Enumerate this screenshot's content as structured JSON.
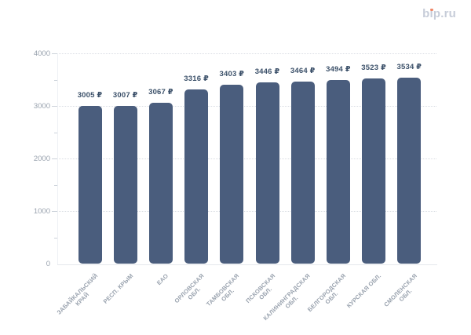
{
  "header": {
    "logo_text": "bip.ru",
    "logo_color": "#c7cdd9",
    "logo_dot_color": "#f08566"
  },
  "chart_data": {
    "type": "bar",
    "title": "",
    "xlabel": "",
    "ylabel": "",
    "categories": [
      "ЗАБАЙКАЛЬСКИЙ КРАЙ",
      "РЕСП. КРЫМ",
      "ЕАО",
      "ОРЛОВСКАЯ ОБЛ.",
      "ТАМБОВСКАЯ ОБЛ.",
      "ПСКОВСКАЯ ОБЛ.",
      "КАЛИНИНГРАДСКАЯ ОБЛ.",
      "БЕЛГОРОДСКАЯ ОБЛ.",
      "КУРСКАЯ ОБЛ.",
      "СМОЛЕНСКАЯ ОБЛ."
    ],
    "category_lines": [
      [
        "ЗАБАЙКАЛЬСКИЙ",
        "КРАЙ"
      ],
      [
        "РЕСП. КРЫМ"
      ],
      [
        "ЕАО"
      ],
      [
        "ОРЛОВСКАЯ",
        "ОБЛ."
      ],
      [
        "ТАМБОВСКАЯ",
        "ОБЛ."
      ],
      [
        "ПСКОВСКАЯ",
        "ОБЛ."
      ],
      [
        "КАЛИНИНГРАДСКАЯ",
        "ОБЛ."
      ],
      [
        "БЕЛГОРОДСКАЯ",
        "ОБЛ."
      ],
      [
        "КУРСКАЯ ОБЛ."
      ],
      [
        "СМОЛЕНСКАЯ",
        "ОБЛ."
      ]
    ],
    "values": [
      3005,
      3007,
      3067,
      3316,
      3403,
      3446,
      3464,
      3494,
      3523,
      3534
    ],
    "value_labels": [
      "3005 ₽",
      "3007 ₽",
      "3067 ₽",
      "3316 ₽",
      "3403 ₽",
      "3446 ₽",
      "3464 ₽",
      "3494 ₽",
      "3523 ₽",
      "3534 ₽"
    ],
    "value_suffix": " ₽",
    "ylim": [
      0,
      4000
    ],
    "yticks": [
      0,
      1000,
      2000,
      3000,
      4000
    ],
    "minor_yticks": [
      500,
      1500,
      2500,
      3500
    ],
    "bar_color": "#4a5d7d",
    "value_label_color": "#3b5069",
    "axis_label_color": "#99a2ae",
    "grid": true,
    "legend": null
  }
}
